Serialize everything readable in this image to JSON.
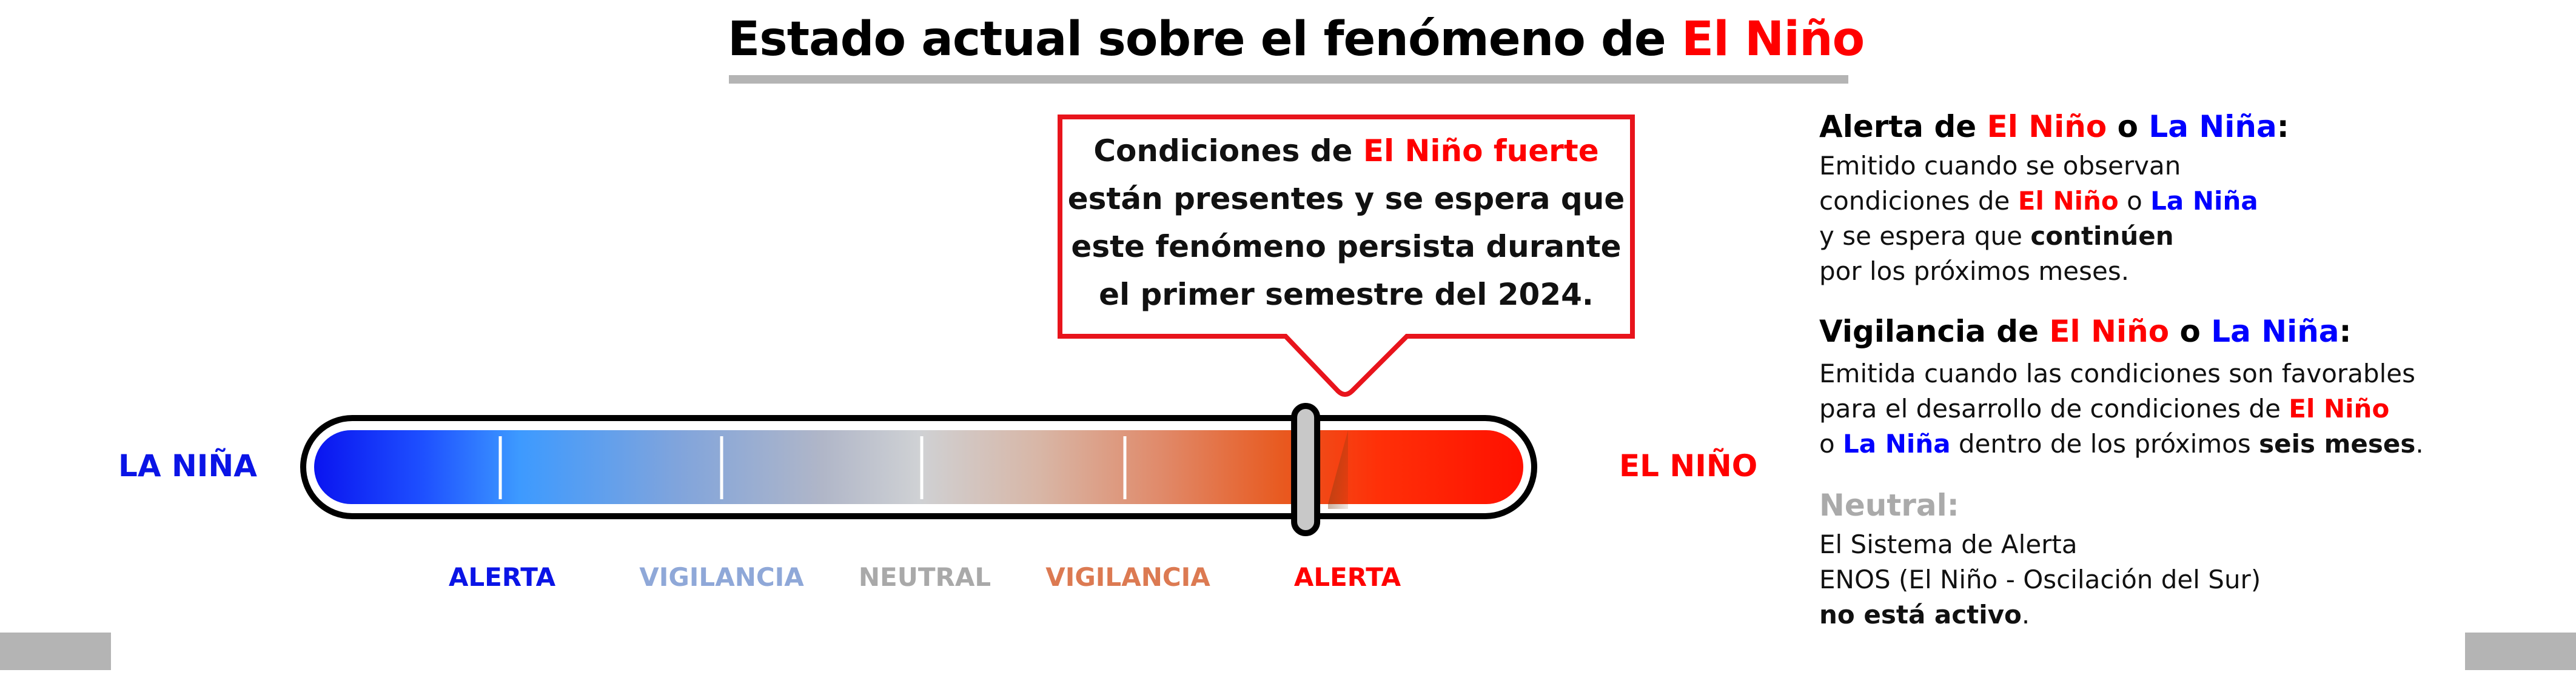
{
  "title": {
    "part1": "Estado actual sobre el fenómeno de ",
    "part2": "El Niño"
  },
  "callout": {
    "line1_prefix": "Condiciones de ",
    "line1_highlight": "El Niño fuerte",
    "line2": "están presentes y se espera que",
    "line3": "este fenómeno persista durante",
    "line4": "el primer semestre del 2024."
  },
  "bar": {
    "left_label": "LA NIÑA",
    "right_label": "EL NIÑO",
    "indicator_level": 0.82,
    "scale_labels": [
      "ALERTA",
      "VIGILANCIA",
      "NEUTRAL",
      "VIGILANCIA",
      "ALERTA"
    ]
  },
  "legend": {
    "alerta": {
      "heading_prefix": "Alerta de ",
      "heading_nino": "El Niño",
      "heading_o": " o ",
      "heading_nina": "La Niña",
      "heading_colon": ":",
      "line1": "Emitido cuando se observan",
      "line2_prefix": "condiciones de ",
      "line2_nino": "El Niño",
      "line2_o": " o ",
      "line2_nina": "La Niña",
      "line3_prefix": "y se espera que ",
      "line3_bold": "continúen",
      "line4": "por los próximos meses."
    },
    "vigilancia": {
      "heading_prefix": "Vigilancia de ",
      "heading_nino": "El Niño",
      "heading_o": " o ",
      "heading_nina": "La Niña",
      "heading_colon": ":",
      "line1": "Emitida cuando las condiciones son favorables",
      "line2_prefix": "para el desarrollo de condiciones de ",
      "line2_nino": "El Niño",
      "line3_o": "o ",
      "line3_nina": "La Niña",
      "line3_mid": " dentro de los próximos ",
      "line3_bold": "seis meses",
      "line3_end": "."
    },
    "neutral": {
      "heading": "Neutral:",
      "line1": "El Sistema de Alerta",
      "line2": "ENOS (El Niño - Oscilación del Sur)",
      "line3_bold": "no está activo",
      "line3_end": "."
    }
  },
  "colors": {
    "el_nino": "#ff0000",
    "la_nina": "#0000ff",
    "neutral": "#aaaaaa",
    "callout_border": "#e8141c"
  }
}
